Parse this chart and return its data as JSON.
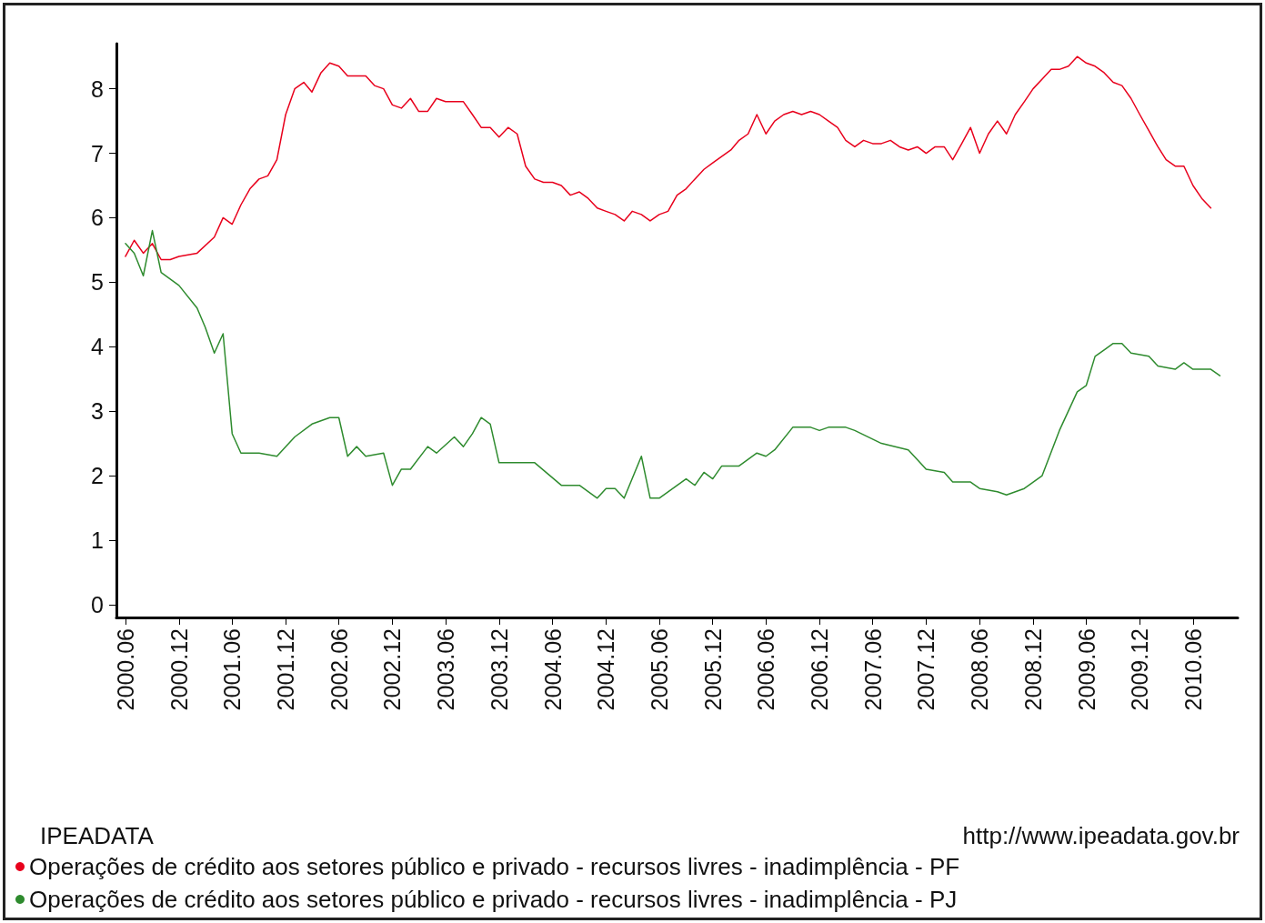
{
  "chart_data": {
    "type": "line",
    "xlim": [
      "2000-05",
      "2010-11"
    ],
    "xticks": [
      {
        "value": "2000-06",
        "label": "2000.06"
      },
      {
        "value": "2000-12",
        "label": "2000.12"
      },
      {
        "value": "2001-06",
        "label": "2001.06"
      },
      {
        "value": "2001-12",
        "label": "2001.12"
      },
      {
        "value": "2002-06",
        "label": "2002.06"
      },
      {
        "value": "2002-12",
        "label": "2002.12"
      },
      {
        "value": "2003-06",
        "label": "2003.06"
      },
      {
        "value": "2003-12",
        "label": "2003.12"
      },
      {
        "value": "2004-06",
        "label": "2004.06"
      },
      {
        "value": "2004-12",
        "label": "2004.12"
      },
      {
        "value": "2005-06",
        "label": "2005.06"
      },
      {
        "value": "2005-12",
        "label": "2005.12"
      },
      {
        "value": "2006-06",
        "label": "2006.06"
      },
      {
        "value": "2006-12",
        "label": "2006.12"
      },
      {
        "value": "2007-06",
        "label": "2007.06"
      },
      {
        "value": "2007-12",
        "label": "2007.12"
      },
      {
        "value": "2008-06",
        "label": "2008.06"
      },
      {
        "value": "2008-12",
        "label": "2008.12"
      },
      {
        "value": "2009-06",
        "label": "2009.06"
      },
      {
        "value": "2009-12",
        "label": "2009.12"
      },
      {
        "value": "2010-06",
        "label": "2010.06"
      }
    ],
    "ylim": [
      -0.2,
      8.7
    ],
    "yticks": [
      0,
      1,
      2,
      3,
      4,
      5,
      6,
      7,
      8
    ],
    "grid": false,
    "legend": "bottom left",
    "marker": "none",
    "line_style": "solid",
    "annotations": [
      "IPEADATA",
      "http://www.ipeadata.gov.br"
    ],
    "series": [
      {
        "name": "Operações de crédito aos setores público e privado - recursos livres - inadimplência - PF",
        "color": "#e8001c",
        "x": [
          "2000-06",
          "2000-07",
          "2000-08",
          "2000-09",
          "2000-10",
          "2000-11",
          "2000-12",
          "2001-02",
          "2001-04",
          "2001-05",
          "2001-06",
          "2001-07",
          "2001-08",
          "2001-09",
          "2001-10",
          "2001-11",
          "2001-12",
          "2002-01",
          "2002-02",
          "2002-03",
          "2002-04",
          "2002-05",
          "2002-06",
          "2002-07",
          "2002-08",
          "2002-09",
          "2002-10",
          "2002-11",
          "2002-12",
          "2003-01",
          "2003-02",
          "2003-03",
          "2003-04",
          "2003-05",
          "2003-06",
          "2003-07",
          "2003-08",
          "2003-09",
          "2003-10",
          "2003-11",
          "2003-12",
          "2004-01",
          "2004-02",
          "2004-03",
          "2004-04",
          "2004-05",
          "2004-06",
          "2004-07",
          "2004-08",
          "2004-09",
          "2004-10",
          "2004-11",
          "2004-12",
          "2005-01",
          "2005-02",
          "2005-03",
          "2005-04",
          "2005-05",
          "2005-06",
          "2005-07",
          "2005-08",
          "2005-09",
          "2005-10",
          "2005-11",
          "2005-12",
          "2006-02",
          "2006-03",
          "2006-04",
          "2006-05",
          "2006-06",
          "2006-07",
          "2006-08",
          "2006-09",
          "2006-10",
          "2006-11",
          "2006-12",
          "2007-01",
          "2007-02",
          "2007-03",
          "2007-04",
          "2007-05",
          "2007-06",
          "2007-07",
          "2007-08",
          "2007-09",
          "2007-10",
          "2007-11",
          "2007-12",
          "2008-01",
          "2008-02",
          "2008-03",
          "2008-04",
          "2008-05",
          "2008-06",
          "2008-07",
          "2008-08",
          "2008-09",
          "2008-10",
          "2008-11",
          "2008-12",
          "2009-01",
          "2009-02",
          "2009-03",
          "2009-04",
          "2009-05",
          "2009-06",
          "2009-07",
          "2009-08",
          "2009-09",
          "2009-10",
          "2009-11",
          "2009-12",
          "2010-01",
          "2010-02",
          "2010-03",
          "2010-04",
          "2010-05",
          "2010-06",
          "2010-07",
          "2010-08"
        ],
        "values": [
          5.4,
          5.65,
          5.45,
          5.6,
          5.35,
          5.35,
          5.4,
          5.45,
          5.7,
          6.0,
          5.9,
          6.2,
          6.45,
          6.6,
          6.65,
          6.9,
          7.6,
          8.0,
          8.1,
          7.95,
          8.25,
          8.4,
          8.35,
          8.2,
          8.2,
          8.2,
          8.05,
          8.0,
          7.75,
          7.7,
          7.85,
          7.65,
          7.65,
          7.85,
          7.8,
          7.8,
          7.8,
          7.6,
          7.4,
          7.4,
          7.25,
          7.4,
          7.3,
          6.8,
          6.6,
          6.55,
          6.55,
          6.5,
          6.35,
          6.4,
          6.3,
          6.15,
          6.1,
          6.05,
          5.95,
          6.1,
          6.05,
          5.95,
          6.05,
          6.1,
          6.35,
          6.45,
          6.6,
          6.75,
          6.85,
          7.05,
          7.2,
          7.3,
          7.6,
          7.3,
          7.5,
          7.6,
          7.65,
          7.6,
          7.65,
          7.6,
          7.5,
          7.4,
          7.2,
          7.1,
          7.2,
          7.15,
          7.15,
          7.2,
          7.1,
          7.05,
          7.1,
          7.0,
          7.1,
          7.1,
          6.9,
          7.15,
          7.4,
          7.0,
          7.3,
          7.5,
          7.3,
          7.6,
          7.8,
          8.0,
          8.15,
          8.3,
          8.3,
          8.35,
          8.5,
          8.4,
          8.35,
          8.25,
          8.1,
          8.05,
          7.85,
          7.6,
          7.35,
          7.1,
          6.9,
          6.8,
          6.8,
          6.5,
          6.3,
          6.15
        ]
      },
      {
        "name": "Operações de crédito aos setores público e privado - recursos livres - inadimplência - PJ",
        "color": "#2e8b2e",
        "x": [
          "2000-06",
          "2000-07",
          "2000-08",
          "2000-09",
          "2000-10",
          "2000-12",
          "2001-02",
          "2001-03",
          "2001-04",
          "2001-05",
          "2001-06",
          "2001-07",
          "2001-09",
          "2001-11",
          "2002-01",
          "2002-03",
          "2002-05",
          "2002-06",
          "2002-07",
          "2002-08",
          "2002-09",
          "2002-11",
          "2002-12",
          "2003-01",
          "2003-02",
          "2003-04",
          "2003-05",
          "2003-07",
          "2003-08",
          "2003-09",
          "2003-10",
          "2003-11",
          "2003-12",
          "2004-04",
          "2004-07",
          "2004-09",
          "2004-11",
          "2004-12",
          "2005-01",
          "2005-02",
          "2005-04",
          "2005-05",
          "2005-06",
          "2005-09",
          "2005-10",
          "2005-11",
          "2005-12",
          "2006-01",
          "2006-03",
          "2006-05",
          "2006-06",
          "2006-07",
          "2006-09",
          "2006-11",
          "2006-12",
          "2007-01",
          "2007-03",
          "2007-04",
          "2007-07",
          "2007-10",
          "2007-12",
          "2008-02",
          "2008-03",
          "2008-05",
          "2008-06",
          "2008-08",
          "2008-09",
          "2008-11",
          "2009-01",
          "2009-03",
          "2009-05",
          "2009-06",
          "2009-07",
          "2009-08",
          "2009-09",
          "2009-10",
          "2009-11",
          "2010-01",
          "2010-02",
          "2010-04",
          "2010-05",
          "2010-06",
          "2010-08",
          "2010-09"
        ],
        "values": [
          5.6,
          5.45,
          5.1,
          5.8,
          5.15,
          4.95,
          4.6,
          4.3,
          3.9,
          4.2,
          2.65,
          2.35,
          2.35,
          2.3,
          2.6,
          2.8,
          2.9,
          2.9,
          2.3,
          2.45,
          2.3,
          2.35,
          1.85,
          2.1,
          2.1,
          2.45,
          2.35,
          2.6,
          2.45,
          2.65,
          2.9,
          2.8,
          2.2,
          2.2,
          1.85,
          1.85,
          1.65,
          1.8,
          1.8,
          1.65,
          2.3,
          1.65,
          1.65,
          1.95,
          1.85,
          2.05,
          1.95,
          2.15,
          2.15,
          2.35,
          2.3,
          2.4,
          2.75,
          2.75,
          2.7,
          2.75,
          2.75,
          2.7,
          2.5,
          2.4,
          2.1,
          2.05,
          1.9,
          1.9,
          1.8,
          1.75,
          1.7,
          1.8,
          2.0,
          2.7,
          3.3,
          3.4,
          3.85,
          3.95,
          4.05,
          4.05,
          3.9,
          3.85,
          3.7,
          3.65,
          3.75,
          3.65,
          3.65,
          3.55
        ]
      }
    ]
  }
}
